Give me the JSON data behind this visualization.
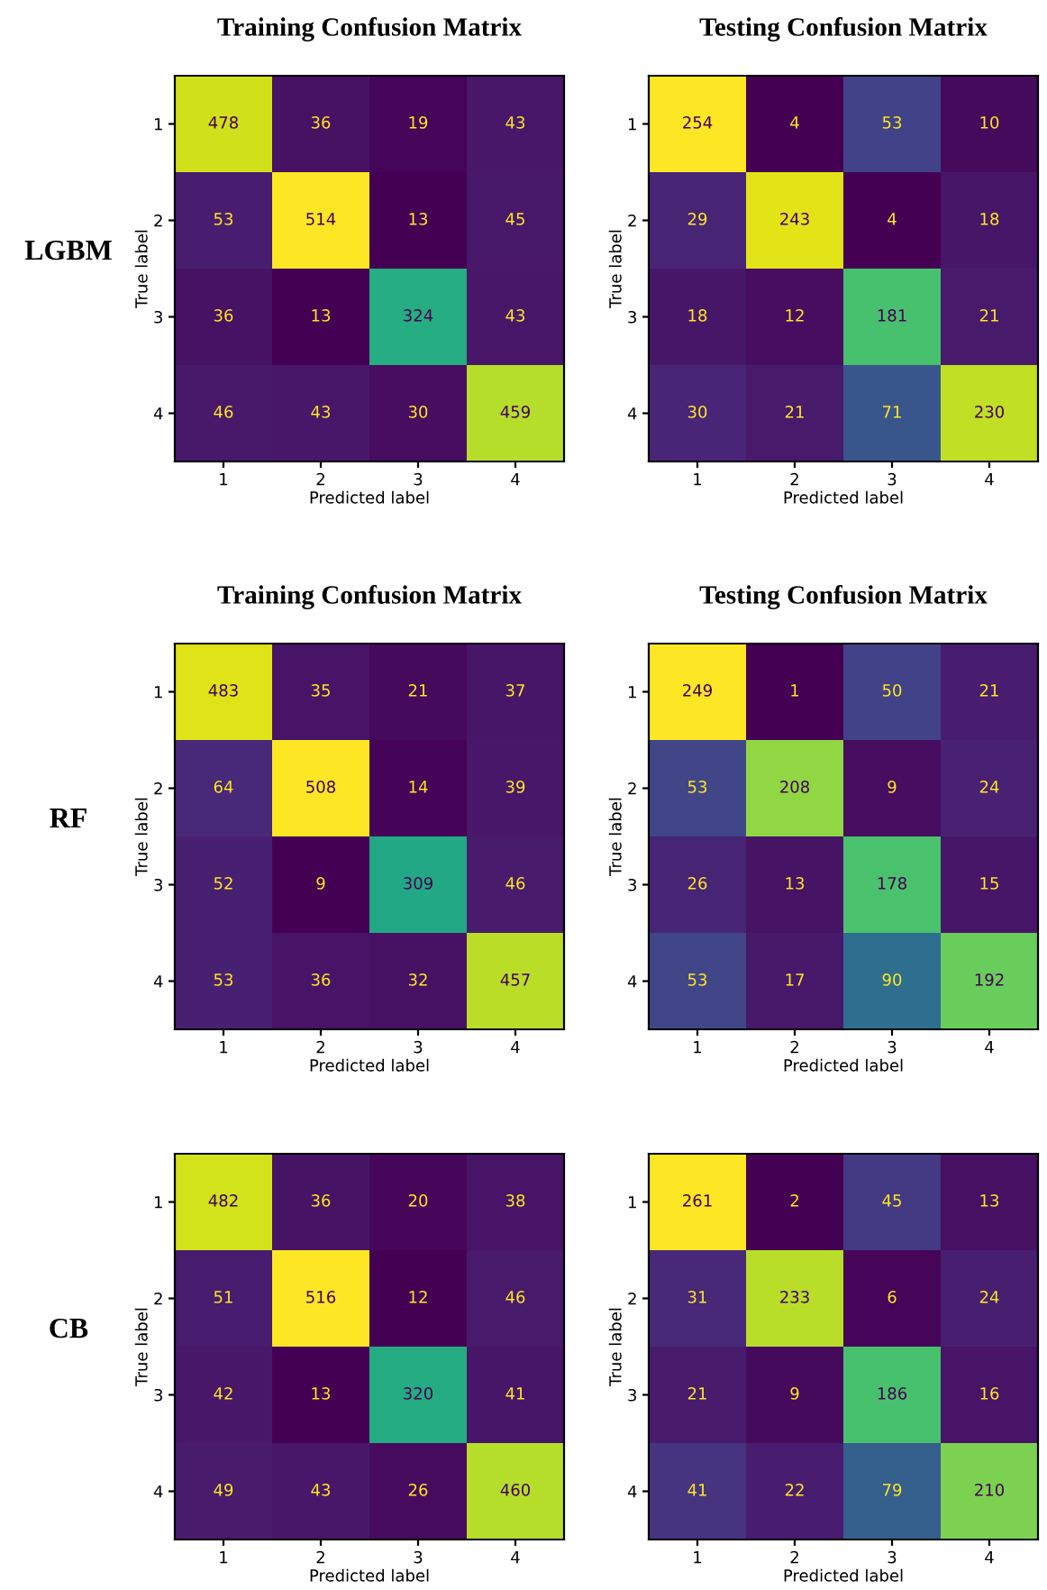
{
  "chart_data": [
    {
      "type": "heatmap",
      "title": "Training Confusion Matrix",
      "xlabel": "Predicted label",
      "ylabel": "True label",
      "annotations": [
        "LGBM"
      ],
      "categories": [
        "1",
        "2",
        "3",
        "4"
      ],
      "y_categories": [
        "1",
        "2",
        "3",
        "4"
      ],
      "data_labels": true,
      "cells": [
        [
          478,
          36,
          19,
          43
        ],
        [
          53,
          514,
          13,
          45
        ],
        [
          36,
          13,
          324,
          43
        ],
        [
          46,
          43,
          30,
          459
        ]
      ]
    },
    {
      "type": "heatmap",
      "title": "Testing Confusion Matrix",
      "xlabel": "Predicted label",
      "ylabel": "True label",
      "categories": [
        "1",
        "2",
        "3",
        "4"
      ],
      "y_categories": [
        "1",
        "2",
        "3",
        "4"
      ],
      "data_labels": true,
      "cells": [
        [
          254,
          4,
          53,
          10
        ],
        [
          29,
          243,
          4,
          18
        ],
        [
          18,
          12,
          181,
          21
        ],
        [
          30,
          21,
          71,
          230
        ]
      ]
    },
    {
      "type": "heatmap",
      "title": "Training Confusion Matrix",
      "xlabel": "Predicted label",
      "ylabel": "True label",
      "annotations": [
        "RF"
      ],
      "categories": [
        "1",
        "2",
        "3",
        "4"
      ],
      "y_categories": [
        "1",
        "2",
        "3",
        "4"
      ],
      "data_labels": true,
      "cells": [
        [
          483,
          35,
          21,
          37
        ],
        [
          64,
          508,
          14,
          39
        ],
        [
          52,
          9,
          309,
          46
        ],
        [
          53,
          36,
          32,
          457
        ]
      ]
    },
    {
      "type": "heatmap",
      "title": "Testing Confusion Matrix",
      "xlabel": "Predicted label",
      "ylabel": "True label",
      "categories": [
        "1",
        "2",
        "3",
        "4"
      ],
      "y_categories": [
        "1",
        "2",
        "3",
        "4"
      ],
      "data_labels": true,
      "cells": [
        [
          249,
          1,
          50,
          21
        ],
        [
          53,
          208,
          9,
          24
        ],
        [
          26,
          13,
          178,
          15
        ],
        [
          53,
          17,
          90,
          192
        ]
      ]
    },
    {
      "type": "heatmap",
      "xlabel": "Predicted label",
      "ylabel": "True label",
      "annotations": [
        "CB"
      ],
      "categories": [
        "1",
        "2",
        "3",
        "4"
      ],
      "y_categories": [
        "1",
        "2",
        "3",
        "4"
      ],
      "data_labels": true,
      "cells": [
        [
          482,
          36,
          20,
          38
        ],
        [
          51,
          516,
          12,
          46
        ],
        [
          42,
          13,
          320,
          41
        ],
        [
          49,
          43,
          26,
          460
        ]
      ]
    },
    {
      "type": "heatmap",
      "xlabel": "Predicted label",
      "ylabel": "True label",
      "categories": [
        "1",
        "2",
        "3",
        "4"
      ],
      "y_categories": [
        "1",
        "2",
        "3",
        "4"
      ],
      "data_labels": true,
      "cells": [
        [
          261,
          2,
          45,
          13
        ],
        [
          31,
          233,
          6,
          24
        ],
        [
          21,
          9,
          186,
          16
        ],
        [
          41,
          22,
          79,
          210
        ]
      ]
    }
  ]
}
